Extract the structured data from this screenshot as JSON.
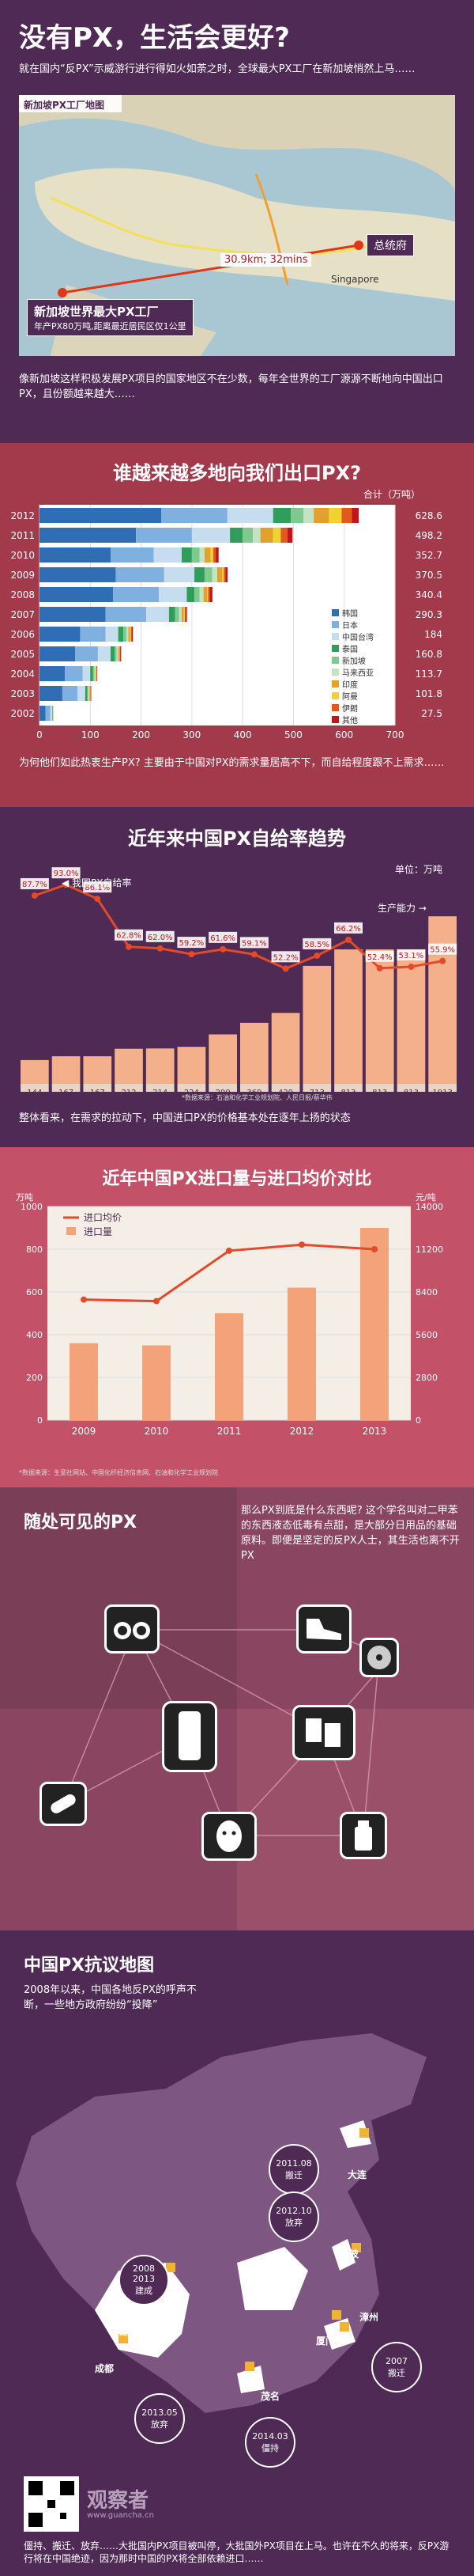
{
  "header": {
    "title": "没有PX，生活会更好?",
    "intro": "就在国内“反PX”示威游行进行得如火如荼之时，全球最大PX工厂在新加坡悄然上马……",
    "map_label": "新加坡PX工厂地图",
    "distance": "30.9km; 32mins",
    "gov_label": "总统府",
    "singapore": "Singapore",
    "factory_name": "新加坡世界最大PX工厂",
    "factory_desc": "年产PX80万吨,距离最近居民区仅1公里",
    "outro": "像新加坡这样积极发展PX项目的国家地区不在少数，每年全世界的工厂源源不断地向中国出口PX，且份额越来越大……"
  },
  "section1": {
    "title": "谁越来越多地向我们出口PX?",
    "unit": "合计（万吨）",
    "note": "为何他们如此热衷生产PX? 主要由于中国对PX的需求量居高不下，而自给程度跟不上需求……",
    "colors": {
      "韩国": "#2f6eb5",
      "日本": "#7fb0e0",
      "中国台湾": "#c6dcef",
      "泰国": "#2f9e5a",
      "新加坡": "#7fc98f",
      "马来西亚": "#c4e3c0",
      "印度": "#e4a02c",
      "阿曼": "#f2d230",
      "伊朗": "#e05a20",
      "其他": "#c0161b"
    }
  },
  "chart_data": [
    {
      "type": "bar",
      "title": "谁越来越多地向我们出口PX?",
      "categories": [
        "2012",
        "2011",
        "2010",
        "2009",
        "2008",
        "2007",
        "2006",
        "2005",
        "2004",
        "2003",
        "2002"
      ],
      "totals": [
        628.6,
        498.2,
        352.7,
        370.5,
        340.4,
        290.3,
        184.0,
        160.8,
        113.7,
        101.8,
        27.5
      ],
      "series": [
        {
          "name": "韩国",
          "values": [
            240,
            190,
            140,
            150,
            145,
            130,
            80,
            70,
            50,
            45,
            12
          ]
        },
        {
          "name": "日本",
          "values": [
            130,
            110,
            85,
            95,
            90,
            80,
            50,
            45,
            35,
            30,
            9
          ]
        },
        {
          "name": "中国台湾",
          "values": [
            90,
            75,
            55,
            60,
            55,
            45,
            25,
            25,
            15,
            15,
            4
          ]
        },
        {
          "name": "泰国",
          "values": [
            35,
            25,
            20,
            20,
            15,
            12,
            10,
            8,
            5,
            4,
            1
          ]
        },
        {
          "name": "新加坡",
          "values": [
            25,
            20,
            15,
            15,
            10,
            8,
            6,
            4,
            3,
            2,
            0.5
          ]
        },
        {
          "name": "马来西亚",
          "values": [
            20,
            15,
            10,
            10,
            8,
            5,
            4,
            3,
            2,
            2,
            0.5
          ]
        },
        {
          "name": "印度",
          "values": [
            30,
            25,
            12,
            10,
            7,
            4,
            3,
            2,
            1,
            1,
            0.2
          ]
        },
        {
          "name": "阿曼",
          "values": [
            25,
            15,
            5,
            3,
            2,
            2,
            2,
            1,
            1,
            1,
            0.1
          ]
        },
        {
          "name": "伊朗",
          "values": [
            20,
            13,
            5,
            3,
            3,
            2,
            2,
            1,
            1,
            1,
            0.1
          ]
        },
        {
          "name": "其他",
          "values": [
            13.6,
            10.2,
            5.7,
            4.5,
            5.4,
            2.3,
            2,
            1.8,
            0.7,
            0.8,
            0.1
          ]
        }
      ],
      "xlim": [
        0,
        700
      ],
      "xticks": [
        0,
        100,
        200,
        300,
        400,
        500,
        600,
        700
      ]
    },
    {
      "type": "bar",
      "title": "近年来中国PX自给率趋势",
      "ylabel": "单位：万吨",
      "categories": [
        "2000",
        "2001",
        "2002",
        "2003",
        "2004",
        "2005",
        "2006",
        "2007",
        "2008",
        "2009",
        "2010",
        "2011",
        "2012",
        "2013"
      ],
      "capacity": [
        144,
        167,
        167,
        212,
        214,
        224,
        299,
        369,
        429,
        713,
        813,
        813,
        813,
        1013
      ],
      "self_rate_labels": [
        "87.7%",
        "93.0%",
        "86.1%",
        "62.8%",
        "62.0%",
        "59.2%",
        "61.6%",
        "59.1%",
        "52.2%",
        "58.5%",
        "66.2%",
        "52.4%",
        "53.1%",
        "55.9%"
      ],
      "self_rate": [
        87.7,
        93.0,
        86.1,
        62.8,
        62.0,
        59.2,
        61.6,
        59.1,
        52.2,
        58.5,
        66.2,
        52.4,
        53.1,
        55.9
      ],
      "legend_rate": "我国PX自给率",
      "legend_cap": "生产能力",
      "source": "*数据来源：石油和化学工业规划院、人民日报/蔡华伟",
      "note": "整体看来，在需求的拉动下，中国进口PX的价格基本处在逐年上扬的状态"
    },
    {
      "type": "bar",
      "title": "近年中国PX进口量与进口均价对比",
      "categories": [
        "2009",
        "2010",
        "2011",
        "2012",
        "2013"
      ],
      "volume": [
        360,
        350,
        500,
        620,
        900
      ],
      "price": [
        7900,
        7800,
        11100,
        11500,
        11200
      ],
      "yleft_ticks": [
        0,
        200,
        400,
        600,
        800,
        1000
      ],
      "yright_ticks": [
        0,
        2800,
        5600,
        8400,
        11200,
        14000
      ],
      "yleft_unit": "万吨",
      "yright_unit": "元/吨",
      "legend_price": "进口均价",
      "legend_volume": "进口量",
      "source": "*数据来源：生意社网站、中国化纤经济信息网、石油和化学工业规划院"
    }
  ],
  "section4": {
    "title": "随处可见的PX",
    "text": "那么PX到底是什么东西呢? 这个学名叫对二甲苯的东西液态低毒有点甜，是大部分日用品的基础原料。即便是坚定的反PX人士，其生活也离不开PX"
  },
  "section5": {
    "title": "中国PX抗议地图",
    "intro": "2008年以来，中国各地反PX的呼声不断，一些地方政府纷纷“投降”",
    "events": [
      {
        "date": "2011.08",
        "status": "搬迁",
        "city": "大连"
      },
      {
        "date": "2008\n2013",
        "status": "建成",
        "city": "成都"
      },
      {
        "date": "2012.10",
        "status": "放弃",
        "city": "宁波"
      },
      {
        "date": "2007",
        "status": "搬迁",
        "city": "厦门"
      },
      {
        "date": "2013.05",
        "status": "放弃",
        "city": "昆明"
      },
      {
        "date": "2014.03",
        "status": "僵持",
        "city": "茂名"
      }
    ],
    "cities_extra": [
      "漳州"
    ],
    "outro": "僵持、搬迁、放弃……大批国内PX项目被叫停，大批国外PX项目在上马。也许在不久的将来，反PX游行将在中国绝迹，因为那时中国的PX将全部依赖进口……",
    "watermark": "观察者",
    "site": "www.guancha.cn"
  }
}
